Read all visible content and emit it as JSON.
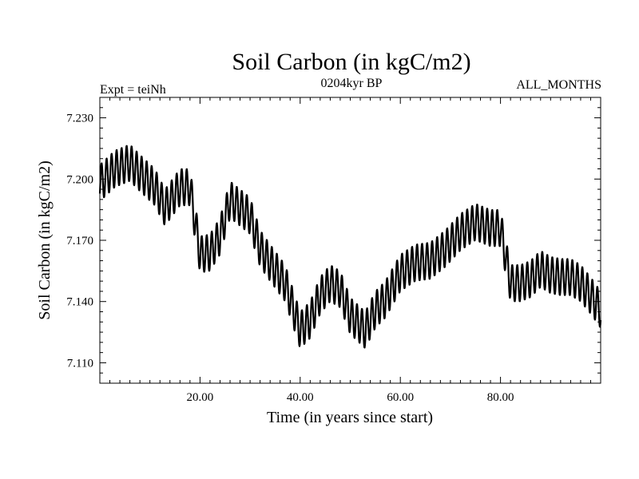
{
  "chart_data": {
    "type": "line",
    "title": "Soil Carbon (in kgC/m2)",
    "subtitle": "0204kyr BP",
    "left_label": "Expt = teiNh",
    "right_label": "ALL_MONTHS",
    "xlabel": "Time (in years since start)",
    "ylabel": "Soil Carbon (in kgC/m2)",
    "xlim": [
      0,
      100
    ],
    "ylim": [
      7.1,
      7.24
    ],
    "x_ticks": [
      20,
      40,
      60,
      80
    ],
    "x_tick_labels": [
      "20.00",
      "40.00",
      "60.00",
      "80.00"
    ],
    "y_ticks": [
      7.11,
      7.14,
      7.17,
      7.2,
      7.23
    ],
    "y_tick_labels": [
      "7.110",
      "7.140",
      "7.170",
      "7.200",
      "7.230"
    ],
    "grid": false,
    "series": [
      {
        "name": "Soil Carbon",
        "seasonal_amplitude": 0.009,
        "x": [
          0,
          3,
          6,
          8,
          11,
          13,
          16,
          18,
          20,
          22,
          24,
          26,
          28,
          30,
          32,
          34,
          37,
          40,
          42,
          44,
          46,
          48,
          50,
          53,
          55,
          57,
          60,
          63,
          66,
          69,
          72,
          75,
          78,
          80,
          82,
          84,
          86,
          88,
          90,
          92,
          94,
          96,
          98,
          100
        ],
        "values": [
          7.198,
          7.205,
          7.208,
          7.203,
          7.196,
          7.186,
          7.196,
          7.196,
          7.163,
          7.164,
          7.172,
          7.19,
          7.186,
          7.182,
          7.166,
          7.159,
          7.149,
          7.126,
          7.131,
          7.143,
          7.149,
          7.146,
          7.133,
          7.126,
          7.136,
          7.141,
          7.154,
          7.159,
          7.16,
          7.166,
          7.174,
          7.179,
          7.176,
          7.176,
          7.149,
          7.149,
          7.151,
          7.156,
          7.153,
          7.152,
          7.152,
          7.149,
          7.143,
          7.136
        ]
      }
    ]
  }
}
